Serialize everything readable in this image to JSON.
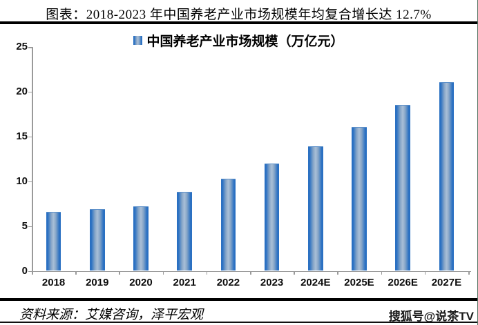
{
  "header": {
    "title": "图表：2018-2023 年中国养老产业市场规模年均复合增长达 12.7%"
  },
  "legend": {
    "marker": "blue-gradient-square",
    "label": "中国养老产业市场规模（万亿元）"
  },
  "chart_data": {
    "type": "bar",
    "categories": [
      "2018",
      "2019",
      "2020",
      "2021",
      "2022",
      "2023",
      "2024E",
      "2025E",
      "2026E",
      "2027E"
    ],
    "values": [
      6.6,
      6.9,
      7.2,
      8.8,
      10.3,
      12.0,
      13.9,
      16.1,
      18.5,
      21.1
    ],
    "title": "中国养老产业市场规模（万亿元）",
    "xlabel": "",
    "ylabel": "",
    "ylim": [
      0,
      25
    ],
    "yticks": [
      0,
      5,
      10,
      15,
      20,
      25
    ],
    "grid": false,
    "legend_position": "top-center",
    "bar_edge_color": "#2a70c2",
    "bar_center_color": "#a9bfd7",
    "axis_color": "#9a9a9a"
  },
  "footer": {
    "source": "资料来源：艾媒咨询，泽平宏观",
    "watermark": "搜狐号@说茶TV"
  }
}
